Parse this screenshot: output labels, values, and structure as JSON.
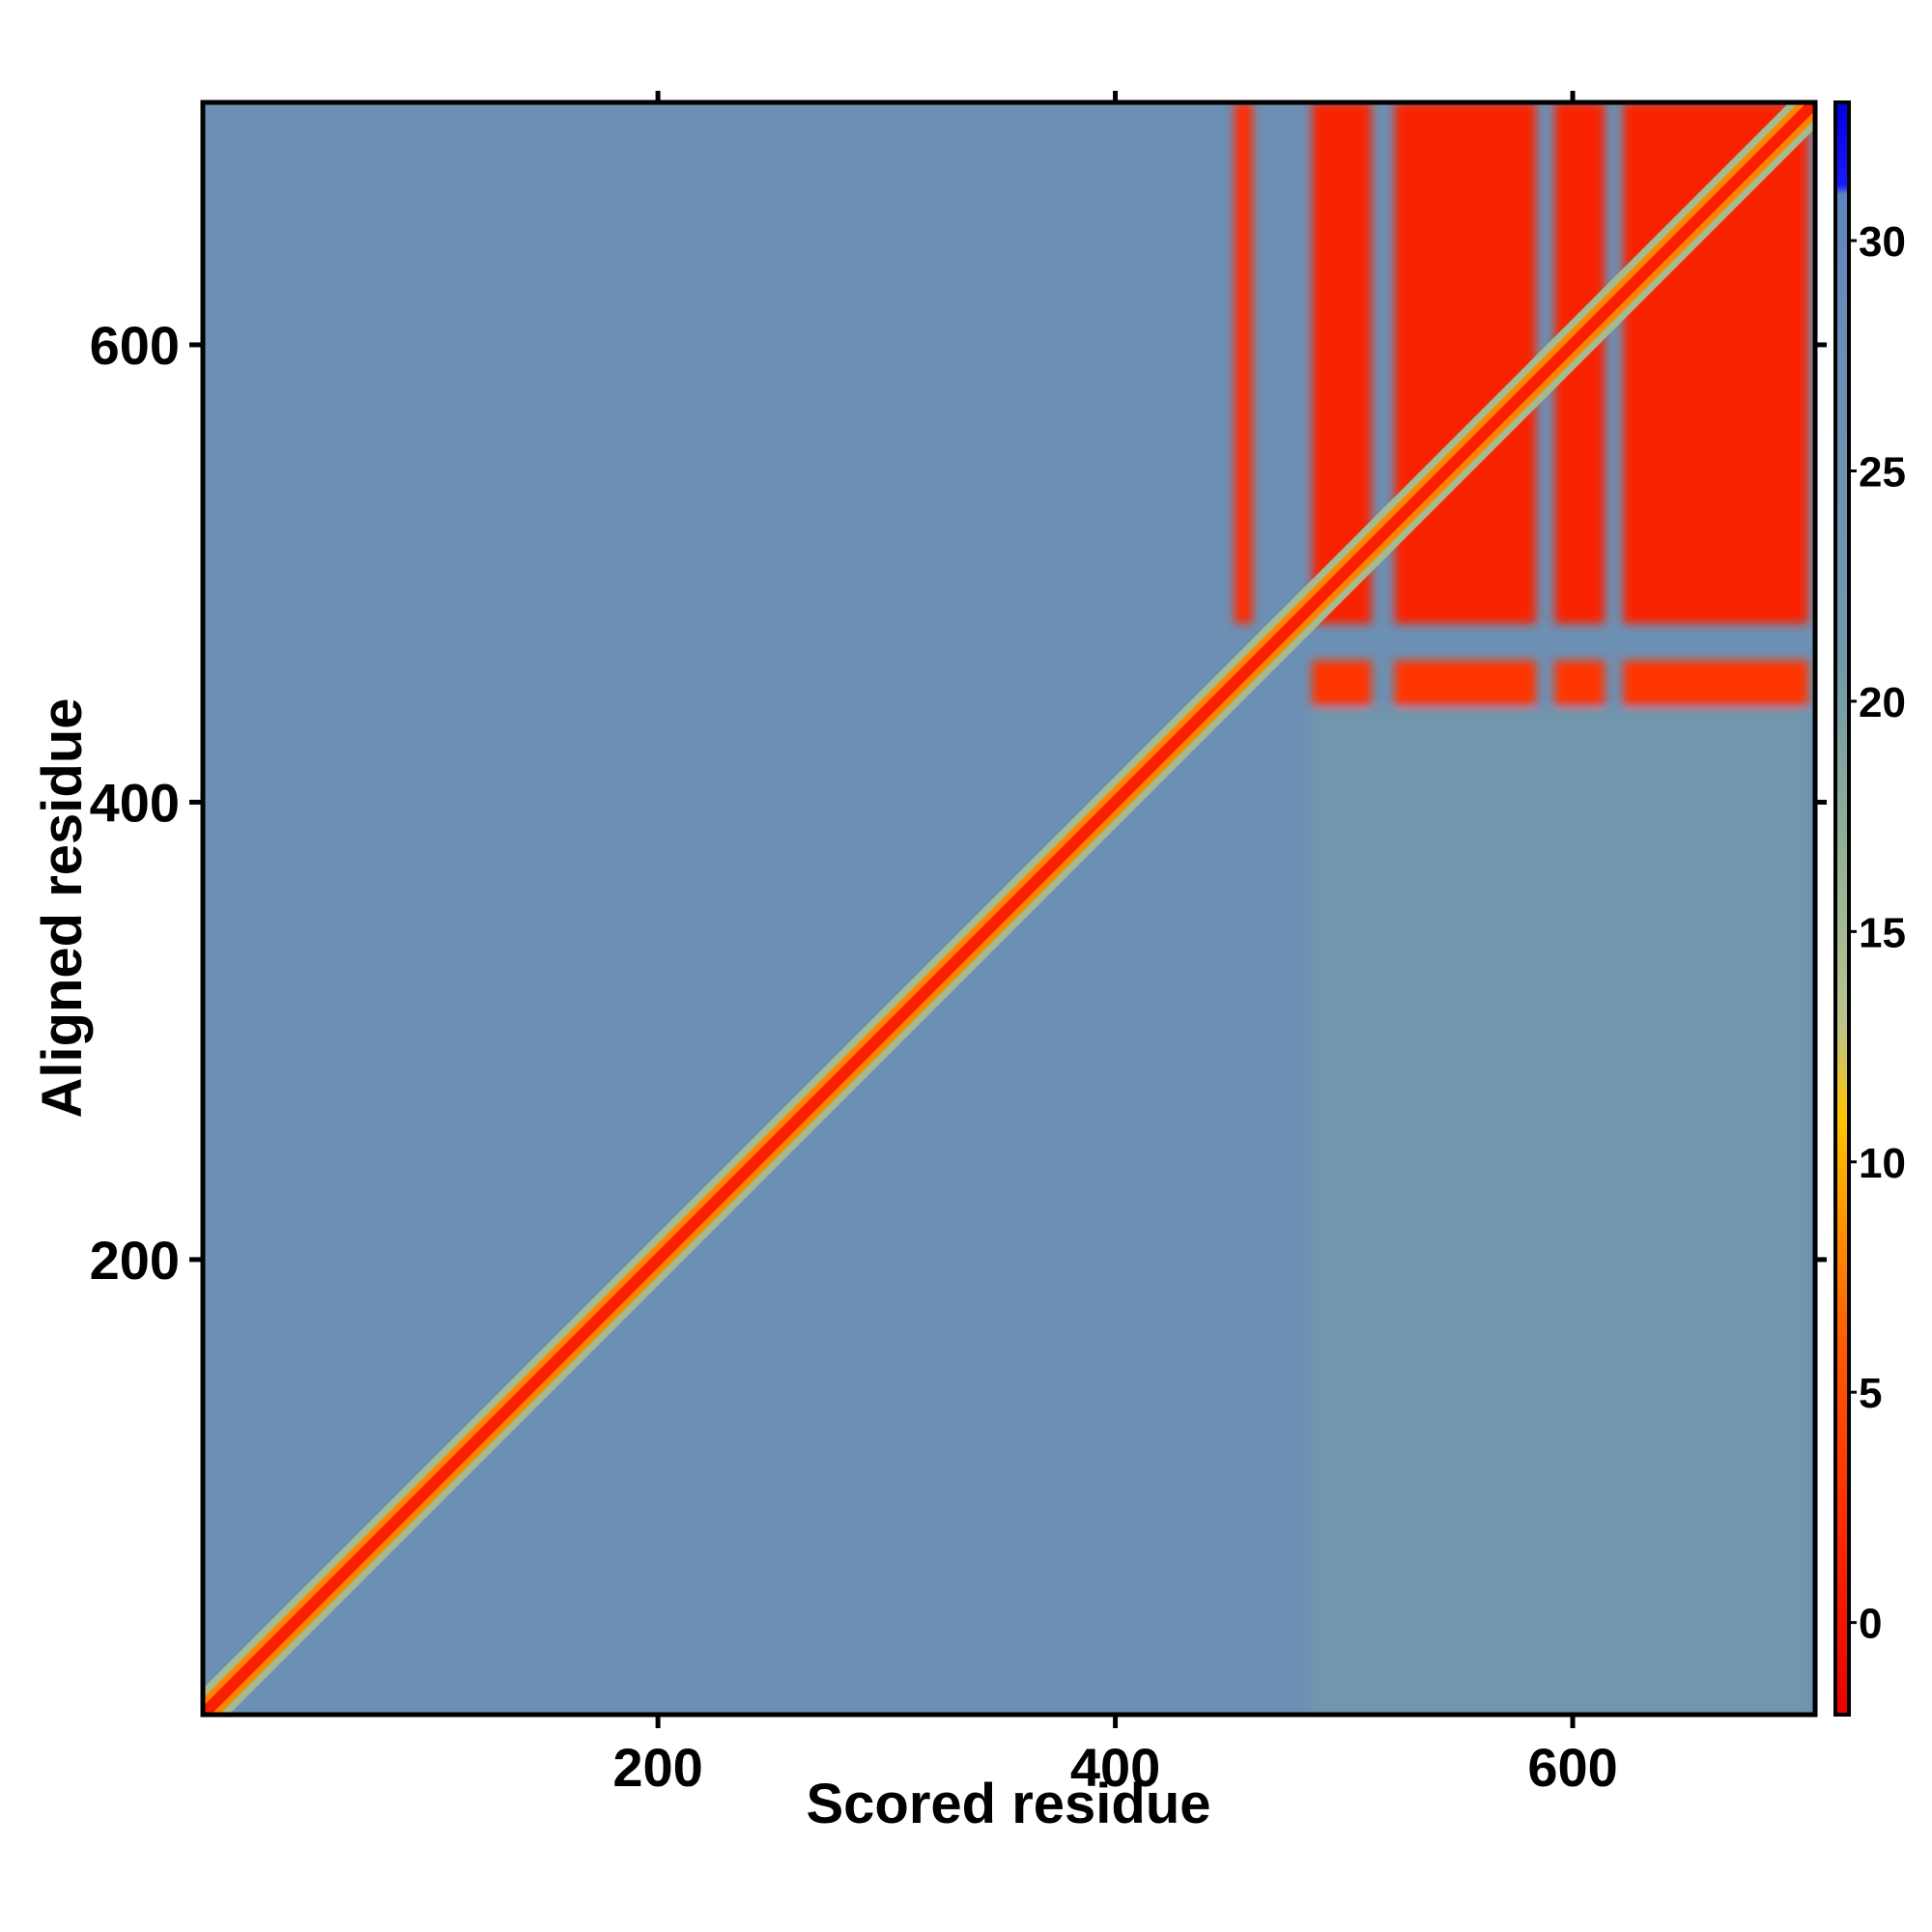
{
  "chart_data": {
    "type": "heatmap",
    "title": "",
    "xlabel": "Scored residue",
    "ylabel": "Aligned residue",
    "xlim": [
      1,
      706
    ],
    "ylim": [
      1,
      706
    ],
    "x_ticks": [
      200,
      400,
      600
    ],
    "y_ticks": [
      200,
      400,
      600
    ],
    "colorbar": {
      "range": [
        -2,
        33
      ],
      "ticks": [
        0,
        5,
        10,
        15,
        20,
        25,
        30
      ],
      "stops": [
        {
          "value": -2,
          "color": "#e80000"
        },
        {
          "value": 2,
          "color": "#ff2a00"
        },
        {
          "value": 6,
          "color": "#ff5a00"
        },
        {
          "value": 9,
          "color": "#ff9a00"
        },
        {
          "value": 11,
          "color": "#ffc400"
        },
        {
          "value": 13,
          "color": "#b9c48c"
        },
        {
          "value": 17,
          "color": "#8fb095"
        },
        {
          "value": 21,
          "color": "#6f97ab"
        },
        {
          "value": 27,
          "color": "#6b8fb4"
        },
        {
          "value": 31,
          "color": "#5e86bc"
        },
        {
          "value": 31.2,
          "color": "#1a1aff"
        },
        {
          "value": 33,
          "color": "#0000e0"
        }
      ]
    },
    "background_value": 26,
    "diagonal": {
      "from": 1,
      "to": 706,
      "value": 1
    },
    "regions": [
      {
        "x": [
          452,
          460
        ],
        "y": [
          478,
          706
        ],
        "value": 2
      },
      {
        "x": [
          486,
          512
        ],
        "y": [
          478,
          706
        ],
        "value": 1
      },
      {
        "x": [
          522,
          584
        ],
        "y": [
          478,
          706
        ],
        "value": 1
      },
      {
        "x": [
          592,
          614
        ],
        "y": [
          478,
          706
        ],
        "value": 1
      },
      {
        "x": [
          622,
          703
        ],
        "y": [
          478,
          706
        ],
        "value": 1
      },
      {
        "x": [
          486,
          512
        ],
        "y": [
          442,
          462
        ],
        "value": 3
      },
      {
        "x": [
          522,
          584
        ],
        "y": [
          442,
          462
        ],
        "value": 3
      },
      {
        "x": [
          592,
          614
        ],
        "y": [
          442,
          462
        ],
        "value": 3
      },
      {
        "x": [
          622,
          703
        ],
        "y": [
          442,
          462
        ],
        "value": 3
      },
      {
        "x": [
          486,
          703
        ],
        "y": [
          1,
          440
        ],
        "value": 21
      }
    ],
    "legend": "colorbar-right",
    "grid": false
  }
}
